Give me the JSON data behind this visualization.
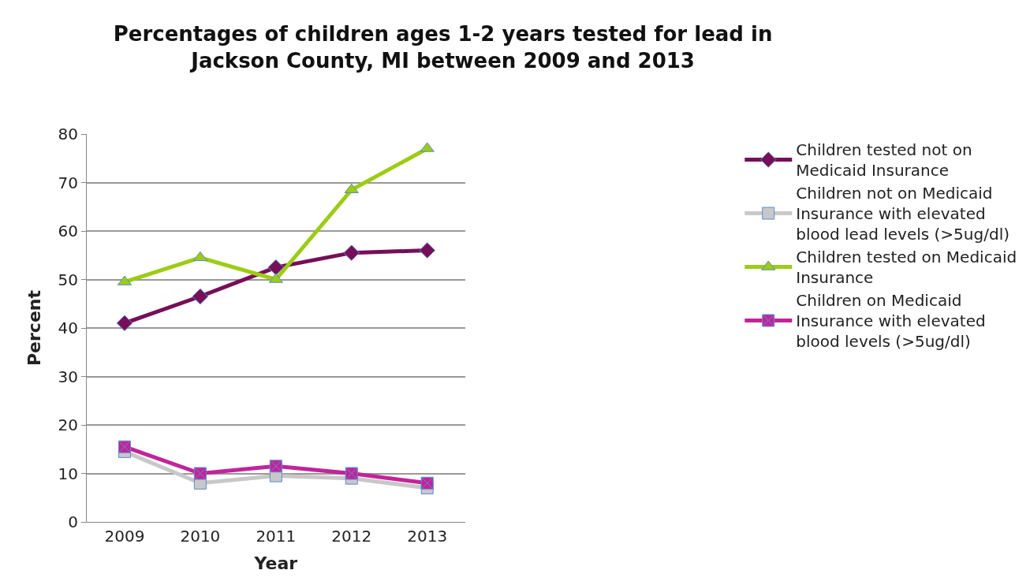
{
  "chart_data": {
    "type": "line",
    "title": "Percentages of children ages 1-2 years tested for lead in Jackson County, MI between 2009 and 2013",
    "xlabel": "Year",
    "ylabel": "Percent",
    "categories": [
      "2009",
      "2010",
      "2011",
      "2012",
      "2013"
    ],
    "series": [
      {
        "name": "Children tested not on Medicaid Insurance",
        "color": "#770e58",
        "marker": "diamond",
        "values": [
          41,
          46.5,
          52.5,
          55.5,
          56
        ]
      },
      {
        "name": "Children not on Medicaid Insurance with elevated blood lead levels (>5ug/dl)",
        "color": "#c8c8c8",
        "marker": "square",
        "values": [
          14.5,
          8,
          9.5,
          9,
          7
        ]
      },
      {
        "name": "Children tested on Medicaid Insurance",
        "color": "#9ccc14",
        "marker": "triangle",
        "values": [
          49.5,
          54.5,
          50,
          68.5,
          77
        ]
      },
      {
        "name": "Children on Medicaid Insurance with elevated blood levels (>5ug/dl)",
        "color": "#c2249a",
        "marker": "cross",
        "values": [
          15.5,
          10,
          11.5,
          10,
          8
        ]
      }
    ],
    "ylim": [
      0,
      80
    ],
    "yticks": [
      0,
      10,
      20,
      30,
      40,
      50,
      60,
      70,
      80
    ],
    "grid": "y",
    "legend": "right"
  }
}
